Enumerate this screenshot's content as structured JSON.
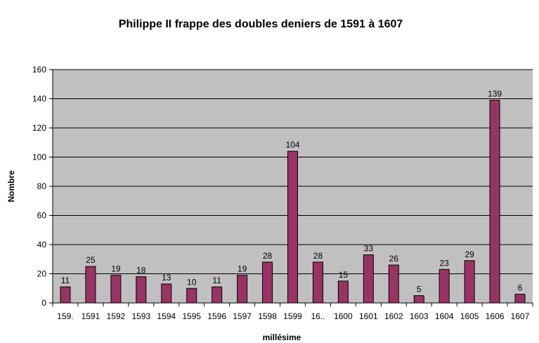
{
  "chart_data": {
    "type": "bar",
    "title": "Philippe II frappe des doubles deniers de 1591 à 1607",
    "xlabel": "millésime",
    "ylabel": "Nombre",
    "ylim": [
      0,
      160
    ],
    "yticks": [
      0,
      20,
      40,
      60,
      80,
      100,
      120,
      140,
      160
    ],
    "grid": true,
    "legend": "none",
    "categories": [
      "159.",
      "1591",
      "1592",
      "1593",
      "1594",
      "1595",
      "1596",
      "1597",
      "1598",
      "1599",
      "16..",
      "1600",
      "1601",
      "1602",
      "1603",
      "1604",
      "1605",
      "1606",
      "1607"
    ],
    "values": [
      11,
      25,
      19,
      18,
      13,
      10,
      11,
      19,
      28,
      104,
      28,
      15,
      33,
      26,
      5,
      23,
      29,
      139,
      6
    ],
    "colors": {
      "bar": "#993366",
      "plot_background": "#c0c0c0",
      "gridline": "#000000"
    }
  }
}
